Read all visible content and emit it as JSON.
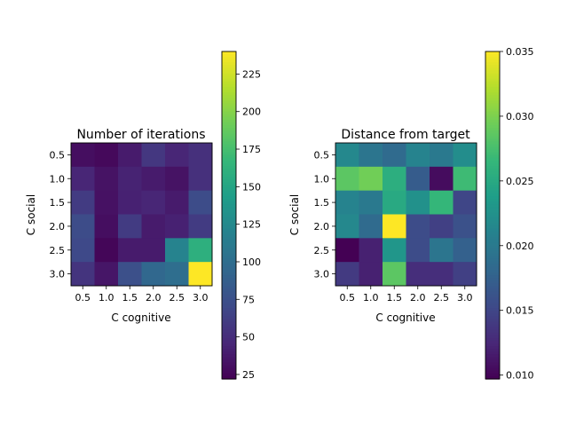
{
  "chart_data": [
    {
      "type": "heatmap",
      "title": "Number of iterations",
      "xlabel": "C cognitive",
      "ylabel": "C social",
      "x_ticks": [
        "0.5",
        "1.0",
        "1.5",
        "2.0",
        "2.5",
        "3.0"
      ],
      "y_ticks": [
        "0.5",
        "1.0",
        "1.5",
        "2.0",
        "2.5",
        "3.0"
      ],
      "colormap": "viridis",
      "vmin": 22,
      "vmax": 240,
      "colorbar_ticks": [
        "25",
        "50",
        "75",
        "100",
        "125",
        "150",
        "175",
        "200",
        "225"
      ],
      "colorbar_tick_values": [
        25,
        50,
        75,
        100,
        125,
        150,
        175,
        200,
        225
      ],
      "values": [
        [
          30,
          27,
          38,
          57,
          45,
          52
        ],
        [
          45,
          33,
          43,
          38,
          33,
          52
        ],
        [
          60,
          32,
          42,
          45,
          38,
          72
        ],
        [
          72,
          30,
          60,
          38,
          42,
          60
        ],
        [
          70,
          25,
          38,
          38,
          120,
          160
        ],
        [
          55,
          35,
          75,
          95,
          100,
          240
        ]
      ]
    },
    {
      "type": "heatmap",
      "title": "Distance from target",
      "xlabel": "C cognitive",
      "ylabel": "C social",
      "x_ticks": [
        "0.5",
        "1.0",
        "1.5",
        "2.0",
        "2.5",
        "3.0"
      ],
      "y_ticks": [
        "0.5",
        "1.0",
        "1.5",
        "2.0",
        "2.5",
        "3.0"
      ],
      "colormap": "viridis",
      "vmin": 0.0097,
      "vmax": 0.035,
      "colorbar_ticks": [
        "0.010",
        "0.015",
        "0.020",
        "0.025",
        "0.030",
        "0.035"
      ],
      "colorbar_tick_values": [
        0.01,
        0.015,
        0.02,
        0.025,
        0.03,
        0.035
      ],
      "values": [
        [
          0.0215,
          0.0195,
          0.0185,
          0.021,
          0.02,
          0.022
        ],
        [
          0.0285,
          0.0295,
          0.0255,
          0.017,
          0.0105,
          0.027
        ],
        [
          0.021,
          0.02,
          0.025,
          0.0225,
          0.0265,
          0.015
        ],
        [
          0.0215,
          0.0185,
          0.035,
          0.0155,
          0.0145,
          0.016
        ],
        [
          0.0097,
          0.012,
          0.023,
          0.0155,
          0.0195,
          0.0175
        ],
        [
          0.014,
          0.012,
          0.0285,
          0.013,
          0.013,
          0.0145
        ]
      ]
    }
  ]
}
